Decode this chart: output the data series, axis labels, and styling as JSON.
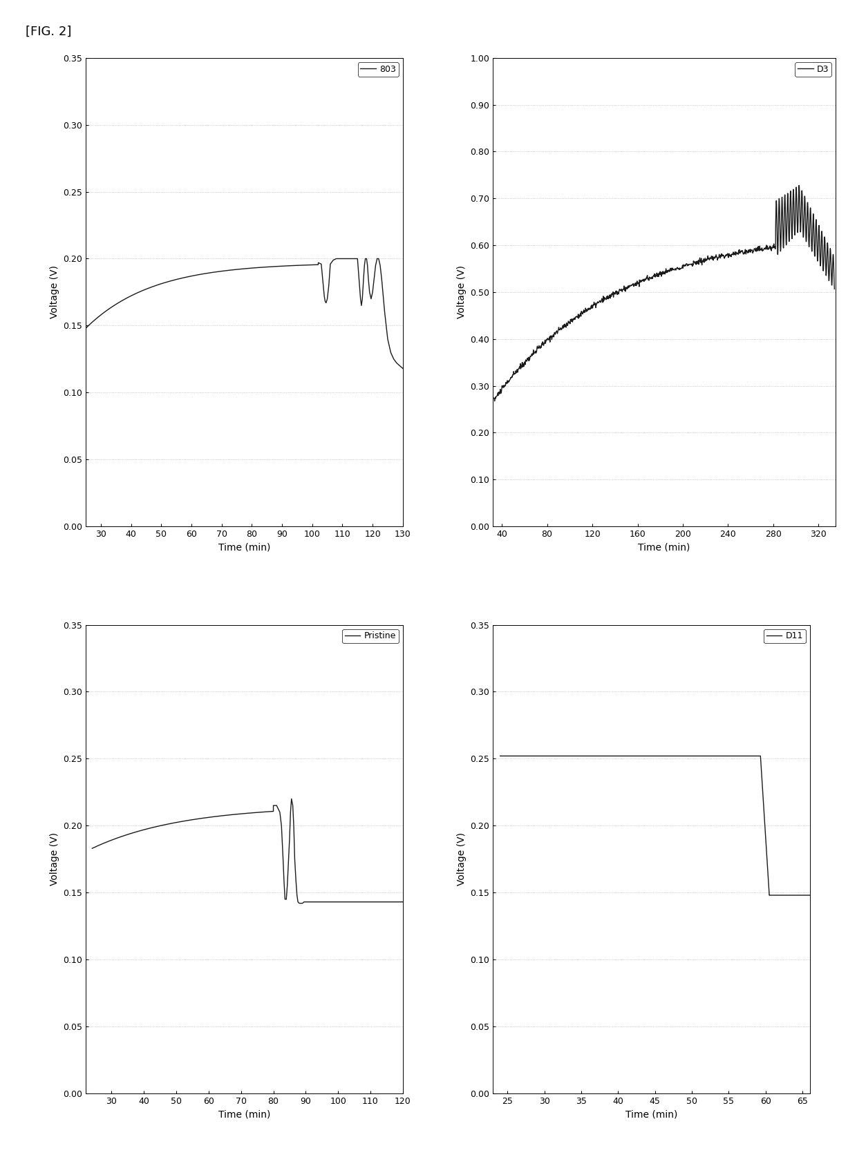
{
  "fig_label": "[FIG. 2]",
  "subplots": [
    {
      "label": "803",
      "xlabel": "Time (min)",
      "ylabel": "Voltage (V)",
      "xlim": [
        25,
        130
      ],
      "ylim": [
        0.0,
        0.35
      ],
      "xticks": [
        30,
        40,
        50,
        60,
        70,
        80,
        90,
        100,
        110,
        120,
        130
      ],
      "yticks": [
        0.0,
        0.05,
        0.1,
        0.15,
        0.2,
        0.25,
        0.3,
        0.35
      ],
      "curve": "803"
    },
    {
      "label": "D3",
      "xlabel": "Time (min)",
      "ylabel": "Voltage (V)",
      "xlim": [
        32,
        335
      ],
      "ylim": [
        0.0,
        1.0
      ],
      "xticks": [
        40,
        80,
        120,
        160,
        200,
        240,
        280,
        320
      ],
      "yticks": [
        0.0,
        0.1,
        0.2,
        0.3,
        0.4,
        0.5,
        0.6,
        0.7,
        0.8,
        0.9,
        1.0
      ],
      "curve": "D3"
    },
    {
      "label": "Pristine",
      "xlabel": "Time (min)",
      "ylabel": "Voltage (V)",
      "xlim": [
        22,
        120
      ],
      "ylim": [
        0.0,
        0.35
      ],
      "xticks": [
        30,
        40,
        50,
        60,
        70,
        80,
        90,
        100,
        110,
        120
      ],
      "yticks": [
        0.0,
        0.05,
        0.1,
        0.15,
        0.2,
        0.25,
        0.3,
        0.35
      ],
      "curve": "Pristine"
    },
    {
      "label": "D11",
      "xlabel": "Time (min)",
      "ylabel": "Voltage (V)",
      "xlim": [
        23,
        66
      ],
      "ylim": [
        0.0,
        0.35
      ],
      "xticks": [
        25,
        30,
        35,
        40,
        45,
        50,
        55,
        60,
        65
      ],
      "yticks": [
        0.0,
        0.05,
        0.1,
        0.15,
        0.2,
        0.25,
        0.3,
        0.35
      ],
      "curve": "D11"
    }
  ],
  "line_color": "#1a1a1a",
  "line_width": 1.0,
  "background_color": "#ffffff",
  "fig_label_fontsize": 13,
  "axis_label_fontsize": 10,
  "tick_fontsize": 9,
  "legend_fontsize": 9
}
